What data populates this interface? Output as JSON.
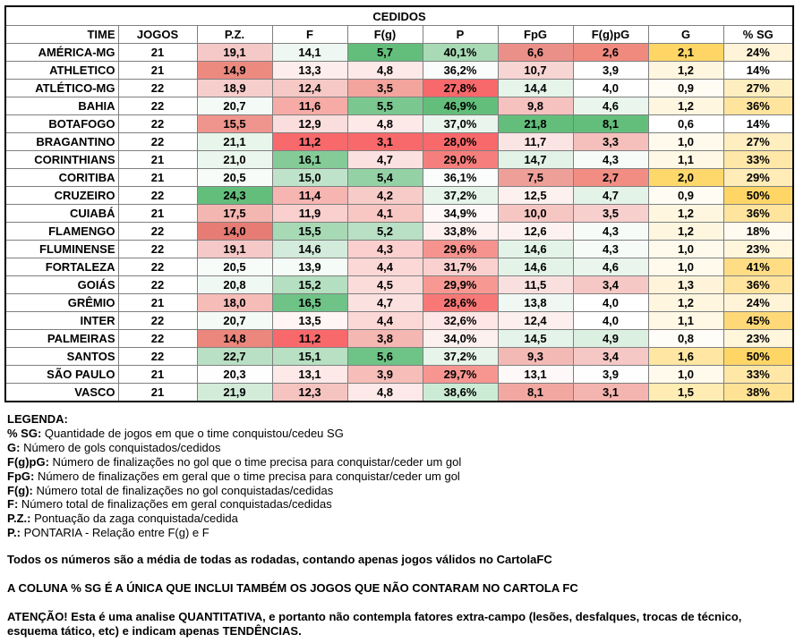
{
  "table": {
    "title": "CEDIDOS",
    "headers": [
      "TIME",
      "JOGOS",
      "P.Z.",
      "F",
      "F(g)",
      "P",
      "FpG",
      "F(g)pG",
      "G",
      "% SG"
    ],
    "rows": [
      {
        "team": "AMÉRICA-MG",
        "cells": [
          "21",
          "19,1",
          "14,1",
          "5,7",
          "40,1%",
          "6,6",
          "2,6",
          "2,1",
          "24%"
        ],
        "colors": [
          "#ffffff",
          "#f5c9c8",
          "#eef7f1",
          "#63be7b",
          "#a8dab6",
          "#ea9088",
          "#f08a7f",
          "#ffd666",
          "#fff4d7"
        ]
      },
      {
        "team": "ATHLETICO",
        "cells": [
          "21",
          "14,9",
          "13,3",
          "4,8",
          "36,2%",
          "10,7",
          "3,9",
          "1,2",
          "14%"
        ],
        "colors": [
          "#ffffff",
          "#ec8a80",
          "#fdeeed",
          "#fde9e8",
          "#f9fcfa",
          "#f7d5d3",
          "#fefefe",
          "#fff6e0",
          "#ffffff"
        ]
      },
      {
        "team": "ATLÉTICO-MG",
        "cells": [
          "22",
          "18,9",
          "12,4",
          "3,5",
          "27,8%",
          "14,4",
          "4,0",
          "0,9",
          "27%"
        ],
        "colors": [
          "#ffffff",
          "#f6cecc",
          "#f6c9c6",
          "#f2a49d",
          "#f8696b",
          "#e6f4ea",
          "#ffffff",
          "#fffcf4",
          "#ffeebf"
        ]
      },
      {
        "team": "BAHIA",
        "cells": [
          "22",
          "20,7",
          "11,6",
          "5,5",
          "46,9%",
          "9,8",
          "4,6",
          "1,2",
          "36%"
        ],
        "colors": [
          "#ffffff",
          "#f4faf6",
          "#f6aba6",
          "#7ac88f",
          "#63be7b",
          "#f5c2bf",
          "#e9f5ed",
          "#fff6e0",
          "#ffe49e"
        ]
      },
      {
        "team": "BOTAFOGO",
        "cells": [
          "22",
          "15,5",
          "12,9",
          "4,8",
          "37,0%",
          "21,8",
          "8,1",
          "0,6",
          "14%"
        ],
        "colors": [
          "#ffffff",
          "#ef958d",
          "#fadedd",
          "#fde9e8",
          "#e9f5ed",
          "#63be7b",
          "#63be7b",
          "#ffffff",
          "#ffffff"
        ]
      },
      {
        "team": "BRAGANTINO",
        "cells": [
          "22",
          "21,1",
          "11,2",
          "3,1",
          "28,0%",
          "11,7",
          "3,3",
          "1,0",
          "27%"
        ],
        "colors": [
          "#ffffff",
          "#e8f5eb",
          "#f8696b",
          "#f8696b",
          "#f8696b",
          "#fbe5e4",
          "#f5c0bc",
          "#fffaec",
          "#ffeebf"
        ]
      },
      {
        "team": "CORINTHIANS",
        "cells": [
          "21",
          "21,0",
          "16,1",
          "4,7",
          "29,0%",
          "14,7",
          "4,3",
          "1,1",
          "33%"
        ],
        "colors": [
          "#ffffff",
          "#ebf6ee",
          "#84cb98",
          "#fbe1e0",
          "#f57f7c",
          "#e2f2e7",
          "#f7fbf8",
          "#fff8e5",
          "#ffe7a8"
        ]
      },
      {
        "team": "CORITIBA",
        "cells": [
          "21",
          "20,5",
          "15,0",
          "5,4",
          "36,1%",
          "7,5",
          "2,7",
          "2,0",
          "29%"
        ],
        "colors": [
          "#ffffff",
          "#f8fcf9",
          "#bfe3ca",
          "#94d2a6",
          "#fafdfb",
          "#ed9f98",
          "#f18d83",
          "#ffd86c",
          "#ffecb7"
        ]
      },
      {
        "team": "CRUZEIRO",
        "cells": [
          "22",
          "24,3",
          "11,4",
          "4,2",
          "37,2%",
          "12,5",
          "4,7",
          "0,9",
          "50%"
        ],
        "colors": [
          "#ffffff",
          "#63be7b",
          "#f7b5b1",
          "#f7cbc8",
          "#e6f4ea",
          "#fdf1f0",
          "#e4f3e8",
          "#fffcf4",
          "#ffd666"
        ]
      },
      {
        "team": "CUIABÁ",
        "cells": [
          "21",
          "17,5",
          "11,9",
          "4,1",
          "34,9%",
          "10,0",
          "3,5",
          "1,2",
          "36%"
        ],
        "colors": [
          "#ffffff",
          "#f4b6b1",
          "#f9d0ce",
          "#f8c7c4",
          "#fef8f8",
          "#f6c6c3",
          "#f7d0cd",
          "#fff6e0",
          "#ffe49e"
        ]
      },
      {
        "team": "FLAMENGO",
        "cells": [
          "22",
          "14,0",
          "15,5",
          "5,2",
          "33,8%",
          "12,6",
          "4,3",
          "1,2",
          "18%"
        ],
        "colors": [
          "#ffffff",
          "#e67c74",
          "#a7d9b5",
          "#b9e0c4",
          "#fdf0ef",
          "#fdf2f1",
          "#f7fbf8",
          "#fff6e0",
          "#fffbf0"
        ]
      },
      {
        "team": "FLUMINENSE",
        "cells": [
          "22",
          "19,1",
          "14,6",
          "4,3",
          "29,6%",
          "14,6",
          "4,3",
          "1,0",
          "23%"
        ],
        "colors": [
          "#ffffff",
          "#f5c9c8",
          "#d2ebda",
          "#facfcd",
          "#f6938e",
          "#e3f3e8",
          "#f7fbf8",
          "#fffaec",
          "#fff6db"
        ]
      },
      {
        "team": "FORTALEZA",
        "cells": [
          "22",
          "20,5",
          "13,9",
          "4,4",
          "31,7%",
          "14,6",
          "4,6",
          "1,0",
          "41%"
        ],
        "colors": [
          "#ffffff",
          "#f8fcf9",
          "#f5fbf7",
          "#fbd8d6",
          "#fbd1cf",
          "#e3f3e8",
          "#e9f5ed",
          "#fffaec",
          "#ffdd85"
        ]
      },
      {
        "team": "GOIÁS",
        "cells": [
          "22",
          "20,8",
          "15,2",
          "4,5",
          "29,9%",
          "11,5",
          "3,4",
          "1,3",
          "36%"
        ],
        "colors": [
          "#ffffff",
          "#f0f8f3",
          "#b4dfc0",
          "#fbdcda",
          "#f79992",
          "#f9e0df",
          "#f6c8c5",
          "#fff4da",
          "#ffe49e"
        ]
      },
      {
        "team": "GRÊMIO",
        "cells": [
          "21",
          "18,0",
          "16,5",
          "4,7",
          "28,6%",
          "13,8",
          "4,0",
          "1,2",
          "24%"
        ],
        "colors": [
          "#ffffff",
          "#f6bcb8",
          "#6fc387",
          "#fbe1e0",
          "#f77876",
          "#f0f8f3",
          "#ffffff",
          "#fff6e0",
          "#fff4d7"
        ]
      },
      {
        "team": "INTER",
        "cells": [
          "22",
          "20,7",
          "13,5",
          "4,4",
          "32,6%",
          "12,4",
          "4,0",
          "1,1",
          "45%"
        ],
        "colors": [
          "#ffffff",
          "#f4faf6",
          "#fef5f4",
          "#fbd8d6",
          "#fde6e5",
          "#fcefee",
          "#ffffff",
          "#fff8e5",
          "#ffd978"
        ]
      },
      {
        "team": "PALMEIRAS",
        "cells": [
          "22",
          "14,8",
          "11,2",
          "3,8",
          "34,0%",
          "14,5",
          "4,9",
          "0,8",
          "23%"
        ],
        "colors": [
          "#ffffff",
          "#eb877d",
          "#f8696b",
          "#f5b7b2",
          "#fdf1f0",
          "#e5f4ea",
          "#dcf0e2",
          "#fffdf7",
          "#fff6db"
        ]
      },
      {
        "team": "SANTOS",
        "cells": [
          "22",
          "22,7",
          "15,1",
          "5,6",
          "37,2%",
          "9,3",
          "3,4",
          "1,6",
          "50%"
        ],
        "colors": [
          "#ffffff",
          "#b9e0c4",
          "#b8e0c3",
          "#6ec386",
          "#e6f4ea",
          "#f3b9b5",
          "#f6c8c5",
          "#ffe7a3",
          "#ffd666"
        ]
      },
      {
        "team": "SÃO PAULO",
        "cells": [
          "21",
          "20,3",
          "13,1",
          "3,9",
          "29,7%",
          "13,1",
          "3,9",
          "1,0",
          "33%"
        ],
        "colors": [
          "#ffffff",
          "#fdfefd",
          "#fce9e8",
          "#f6bdb9",
          "#f79691",
          "#fef8f8",
          "#fefefe",
          "#fffaec",
          "#ffe7a8"
        ]
      },
      {
        "team": "VASCO",
        "cells": [
          "21",
          "21,9",
          "12,3",
          "4,8",
          "38,6%",
          "8,1",
          "3,1",
          "1,5",
          "38%"
        ],
        "colors": [
          "#ffffff",
          "#d3ebd9",
          "#f5c4c0",
          "#fde9e8",
          "#ccebd5",
          "#f0a8a1",
          "#f4b4af",
          "#ffecb3",
          "#ffe294"
        ]
      }
    ]
  },
  "legend": {
    "title": "LEGENDA:",
    "items": [
      {
        "term": "% SG:",
        "desc": "Quantidade de jogos em que o time conquistou/cedeu SG"
      },
      {
        "term": "G:",
        "desc": "Número de gols conquistados/cedidos"
      },
      {
        "term": "F(g)pG:",
        "desc": "Número de finalizações no gol que o time precisa para conquistar/ceder um gol"
      },
      {
        "term": "FpG:",
        "desc": "Número de finalizações em geral que o time precisa para conquistar/ceder um gol"
      },
      {
        "term": "F(g):",
        "desc": "Número total de finalizações no gol conquistadas/cedidas"
      },
      {
        "term": "F:",
        "desc": "Número total de finalizações em geral conquistadas/cedidas"
      },
      {
        "term": "P.Z.:",
        "desc": "Pontuação da zaga conquistada/cedida"
      },
      {
        "term": "P.:",
        "desc": "PONTARIA - Relação entre F(g) e F"
      }
    ],
    "note1": "Todos os números são a média de todas as rodadas, contando apenas jogos válidos no CartolaFC",
    "note2": "A COLUNA % SG É A ÚNICA QUE INCLUI TAMBÉM OS JOGOS QUE NÃO CONTARAM NO CARTOLA FC",
    "note3": "ATENÇÃO! Esta é uma analise QUANTITATIVA, e portanto não contempla fatores extra-campo (lesões, desfalques, trocas de técnico, esquema tático, etc) e indicam apenas TENDÊNCIAS."
  }
}
